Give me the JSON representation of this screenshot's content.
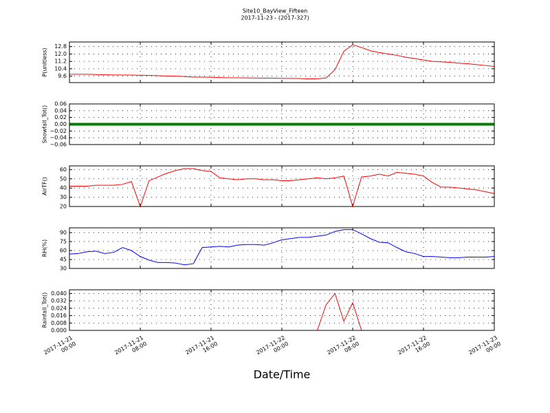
{
  "chart_data": {
    "type": "line",
    "title": "Site10_BayView_Fifteen",
    "subtitle": "2017-11-23 - (2017-327)",
    "xlabel": "Date/Time",
    "grid": true,
    "xlim": [
      "2017-11-21 00:00",
      "2017-11-23 00:00"
    ],
    "xticks": [
      {
        "value": "2017-11-21 00:00",
        "label": "2017-11-21\n00:00"
      },
      {
        "value": "2017-11-21 08:00",
        "label": "2017-11-21\n08:00"
      },
      {
        "value": "2017-11-21 16:00",
        "label": "2017-11-21\n16:00"
      },
      {
        "value": "2017-11-22 00:00",
        "label": "2017-11-22\n00:00"
      },
      {
        "value": "2017-11-22 08:00",
        "label": "2017-11-22\n08:00"
      },
      {
        "value": "2017-11-22 16:00",
        "label": "2017-11-22\n16:00"
      },
      {
        "value": "2017-11-23 00:00",
        "label": "2017-11-23\n00:00"
      }
    ],
    "x": [
      "2017-11-21 00:00",
      "2017-11-21 01:00",
      "2017-11-21 02:00",
      "2017-11-21 03:00",
      "2017-11-21 04:00",
      "2017-11-21 05:00",
      "2017-11-21 06:00",
      "2017-11-21 07:00",
      "2017-11-21 08:00",
      "2017-11-21 09:00",
      "2017-11-21 10:00",
      "2017-11-21 11:00",
      "2017-11-21 12:00",
      "2017-11-21 13:00",
      "2017-11-21 14:00",
      "2017-11-21 15:00",
      "2017-11-21 16:00",
      "2017-11-21 17:00",
      "2017-11-21 18:00",
      "2017-11-21 19:00",
      "2017-11-21 20:00",
      "2017-11-21 21:00",
      "2017-11-21 22:00",
      "2017-11-21 23:00",
      "2017-11-22 00:00",
      "2017-11-22 01:00",
      "2017-11-22 02:00",
      "2017-11-22 03:00",
      "2017-11-22 04:00",
      "2017-11-22 05:00",
      "2017-11-22 06:00",
      "2017-11-22 07:00",
      "2017-11-22 08:00",
      "2017-11-22 09:00",
      "2017-11-22 10:00",
      "2017-11-22 11:00",
      "2017-11-22 12:00",
      "2017-11-22 13:00",
      "2017-11-22 14:00",
      "2017-11-22 15:00",
      "2017-11-22 16:00",
      "2017-11-22 17:00",
      "2017-11-22 18:00",
      "2017-11-22 19:00",
      "2017-11-22 20:00",
      "2017-11-22 21:00",
      "2017-11-22 22:00",
      "2017-11-22 23:00",
      "2017-11-23 00:00"
    ],
    "panels": [
      {
        "ylabel": "P(unitless)",
        "ylim": [
          8.9,
          13.3
        ],
        "yticks": [
          9.6,
          10.4,
          11.2,
          {
            "value": 12.0,
            "label": "12.0"
          },
          12.8
        ],
        "series": [
          {
            "color": "#ff0000",
            "values": [
              9.8,
              9.8,
              9.8,
              9.78,
              9.75,
              9.73,
              9.72,
              9.72,
              9.7,
              9.68,
              9.65,
              9.62,
              9.6,
              9.55,
              9.5,
              9.5,
              9.48,
              9.45,
              9.42,
              9.42,
              9.4,
              9.4,
              9.38,
              9.38,
              9.37,
              9.36,
              9.35,
              9.3,
              9.32,
              9.4,
              10.3,
              12.3,
              13.0,
              12.7,
              12.35,
              12.15,
              12.0,
              11.85,
              11.65,
              11.5,
              11.35,
              11.2,
              11.15,
              11.1,
              11.0,
              10.95,
              10.85,
              10.75,
              10.65
            ]
          }
        ]
      },
      {
        "ylabel": "Snowfall_Tot()",
        "ylim": [
          -0.06,
          0.06
        ],
        "yticks": [
          {
            "value": -0.06,
            "label": "−0.06"
          },
          {
            "value": -0.04,
            "label": "−0.04"
          },
          {
            "value": -0.02,
            "label": "−0.02"
          },
          {
            "value": 0,
            "label": "0.00"
          },
          {
            "value": 0.02,
            "label": "0.02"
          },
          {
            "value": 0.04,
            "label": "0.04"
          },
          {
            "value": 0.06,
            "label": "0.06"
          }
        ],
        "series": [
          {
            "color": "#008000",
            "width": 4,
            "values": [
              0,
              0,
              0,
              0,
              0,
              0,
              0,
              0,
              0,
              0,
              0,
              0,
              0,
              0,
              0,
              0,
              0,
              0,
              0,
              0,
              0,
              0,
              0,
              0,
              0,
              0,
              0,
              0,
              0,
              0,
              0,
              0,
              0,
              0,
              0,
              0,
              0,
              0,
              0,
              0,
              0,
              0,
              0,
              0,
              0,
              0,
              0,
              0,
              0
            ]
          }
        ]
      },
      {
        "ylabel": "AirTF()",
        "ylim": [
          20,
          64
        ],
        "yticks": [
          20,
          30,
          40,
          50,
          60
        ],
        "series": [
          {
            "color": "#ff0000",
            "values": [
              42,
              42,
              42,
              43,
              43,
              43,
              44,
              47,
              20,
              48,
              52,
              56,
              59,
              61,
              61,
              59,
              58,
              51,
              50,
              49,
              50,
              50,
              49,
              49,
              48,
              48,
              49,
              50,
              51,
              50,
              51,
              53,
              20,
              52,
              53,
              55,
              53,
              57,
              56,
              55,
              53,
              46,
              41,
              41,
              40,
              39,
              38,
              36,
              34
            ]
          }
        ]
      },
      {
        "ylabel": "RH(%)",
        "ylim": [
          30,
          98
        ],
        "yticks": [
          30,
          45,
          60,
          75,
          90
        ],
        "series": [
          {
            "color": "#0000ff",
            "values": [
              54,
              55,
              58,
              59,
              55,
              57,
              65,
              60,
              50,
              44,
              40,
              40,
              39,
              36,
              38,
              65,
              66,
              67,
              66,
              69,
              70,
              70,
              69,
              73,
              78,
              80,
              82,
              82,
              84,
              86,
              92,
              95,
              95,
              88,
              80,
              74,
              73,
              65,
              58,
              55,
              50,
              50,
              49,
              48,
              48,
              49,
              49,
              49,
              50
            ]
          }
        ]
      },
      {
        "ylabel": "Rainfall_Tot()",
        "ylim": [
          0,
          0.044
        ],
        "yticks": [
          {
            "value": 0,
            "label": "0.000"
          },
          {
            "value": 0.008,
            "label": "0.008"
          },
          {
            "value": 0.016,
            "label": "0.016"
          },
          {
            "value": 0.024,
            "label": "0.024"
          },
          {
            "value": 0.032,
            "label": "0.032"
          },
          {
            "value": 0.04,
            "label": "0.040"
          }
        ],
        "series": [
          {
            "color": "#ff0000",
            "values": [
              0,
              0,
              0,
              0,
              0,
              0,
              0,
              0,
              0,
              0,
              0,
              0,
              0,
              0,
              0,
              0,
              0,
              0,
              0,
              0,
              0,
              0,
              0,
              0,
              0,
              0,
              0,
              0,
              0,
              0.028,
              0.04,
              0.01,
              0.03,
              0,
              0,
              0,
              0,
              0,
              0,
              0,
              0,
              0,
              0,
              0,
              0,
              0,
              0,
              0,
              0
            ]
          }
        ]
      }
    ]
  }
}
